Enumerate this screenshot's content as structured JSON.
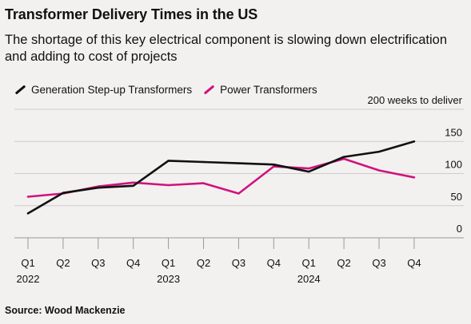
{
  "header": {
    "title": "Transformer Delivery Times in the US",
    "subtitle": "The shortage of this key electrical component is slowing down electrification and adding to cost of projects"
  },
  "footer": {
    "source": "Source: Wood Mackenzie"
  },
  "colors": {
    "background": "#f2f1ef",
    "gsu": "#111111",
    "power": "#d1127f",
    "grid": "#cccccc"
  },
  "chart_data": {
    "type": "line",
    "unit_label": "200 weeks to deliver",
    "x": [
      "Q1",
      "Q2",
      "Q3",
      "Q4",
      "Q1",
      "Q2",
      "Q3",
      "Q4",
      "Q1",
      "Q2",
      "Q3",
      "Q4"
    ],
    "year_labels": [
      {
        "index": 0,
        "label": "2022"
      },
      {
        "index": 4,
        "label": "2023"
      },
      {
        "index": 8,
        "label": "2024"
      }
    ],
    "yticks": [
      0,
      50,
      100,
      150
    ],
    "ylim": [
      0,
      200
    ],
    "grid": true,
    "legend_position": "top-left",
    "series": [
      {
        "name": "Generation Step-up Transformers",
        "color": "#111111",
        "values": [
          38,
          70,
          78,
          81,
          120,
          118,
          116,
          114,
          103,
          126,
          134,
          150
        ]
      },
      {
        "name": "Power Transformers",
        "color": "#d1127f",
        "values": [
          64,
          69,
          80,
          86,
          82,
          85,
          69,
          111,
          108,
          123,
          105,
          94
        ]
      }
    ]
  }
}
